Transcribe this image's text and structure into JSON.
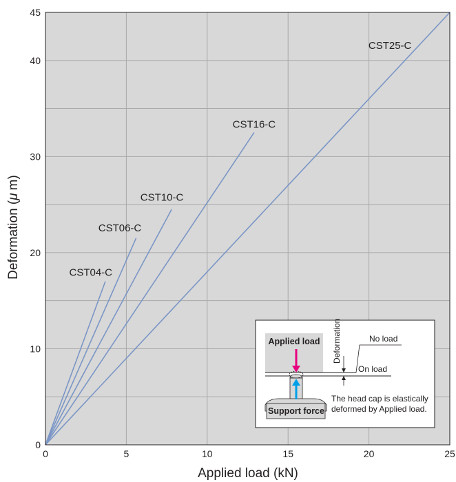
{
  "chart_data": {
    "type": "line",
    "xlabel": "Applied load (kN)",
    "ylabel_prefix": "Deformation (",
    "ylabel_mu": "μ",
    "ylabel_suffix": "m)",
    "xlim": [
      0,
      25
    ],
    "ylim": [
      0,
      45
    ],
    "xticks": [
      0,
      5,
      10,
      15,
      20,
      25
    ],
    "yticks": [
      0,
      10,
      20,
      30,
      40,
      45
    ],
    "xgrid_step": 5,
    "ygrid_step": 5,
    "grid": true,
    "plot_background": "#d8d8d8",
    "grid_color": "#a9a9a9",
    "line_color": "#7b96c6",
    "series": [
      {
        "name": "CST04-C",
        "x": [
          0,
          3.7
        ],
        "y": [
          0,
          17
        ]
      },
      {
        "name": "CST06-C",
        "x": [
          0,
          5.6
        ],
        "y": [
          0,
          21.5
        ]
      },
      {
        "name": "CST10-C",
        "x": [
          0,
          7.8
        ],
        "y": [
          0,
          24.5
        ]
      },
      {
        "name": "CST16-C",
        "x": [
          0,
          12.9
        ],
        "y": [
          0,
          32.5
        ]
      },
      {
        "name": "CST25-C",
        "x": [
          0,
          25
        ],
        "y": [
          0,
          45
        ]
      }
    ],
    "annotations": [
      {
        "text": "CST04-C",
        "x": 2.8,
        "y": 17.6
      },
      {
        "text": "CST06-C",
        "x": 4.6,
        "y": 22.2
      },
      {
        "text": "CST10-C",
        "x": 7.2,
        "y": 25.4
      },
      {
        "text": "CST16-C",
        "x": 12.9,
        "y": 33.0
      },
      {
        "text": "CST25-C",
        "x": 21.3,
        "y": 41.2
      }
    ]
  },
  "inset": {
    "applied_load": "Applied load",
    "support_force": "Support force",
    "deformation": "Deformation",
    "no_load": "No load",
    "on_load": "On load",
    "caption_line1": "The head cap is elastically",
    "caption_line2": "deformed by Applied load.",
    "applied_arrow_color": "#e6007e",
    "support_arrow_color": "#00a0e9"
  }
}
